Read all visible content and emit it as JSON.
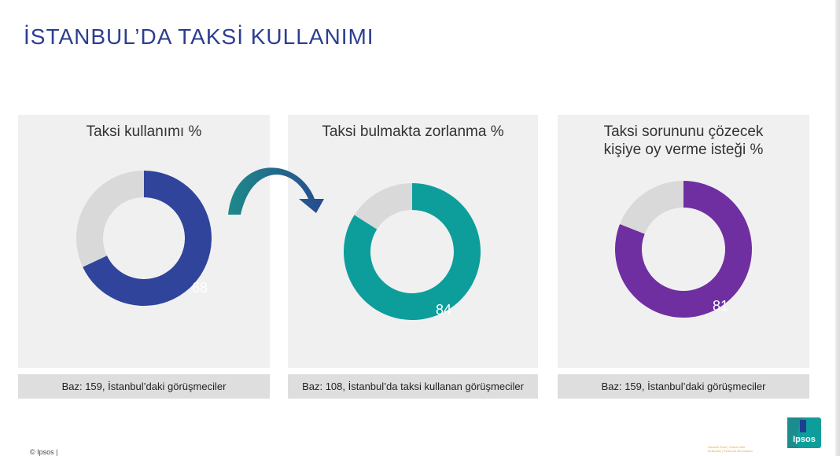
{
  "page": {
    "title": "İSTANBUL’DA TAKSİ KULLANIMI",
    "footer": "© Ipsos |",
    "logo_text": "Ipsos",
    "tagline_line1": "Hisseler Real | Global Intel",
    "tagline_line2": "Multichild | Personal Information"
  },
  "colors": {
    "title": "#2c3e91",
    "remainder": "#d9d9d9",
    "panel_bg": "#f0f0f0",
    "arrow": "#1f6f86"
  },
  "chart_data": [
    {
      "type": "pie",
      "title": "Taksi kullanımı %",
      "values": [
        68
      ],
      "color": "#30449b",
      "base": "Baz: 159, İstanbul’daki görüşmeciler"
    },
    {
      "type": "pie",
      "title": "Taksi bulmakta zorlanma %",
      "values": [
        84
      ],
      "color": "#0d9e9b",
      "base": "Baz: 108, İstanbul’da taksi kullanan görüşmeciler"
    },
    {
      "type": "pie",
      "title_lines": [
        "Taksi sorununu çözecek",
        "kişiye oy verme isteği %"
      ],
      "values": [
        81
      ],
      "color": "#6f2fa1",
      "base": "Baz: 159, İstanbul’daki görüşmeciler"
    }
  ]
}
